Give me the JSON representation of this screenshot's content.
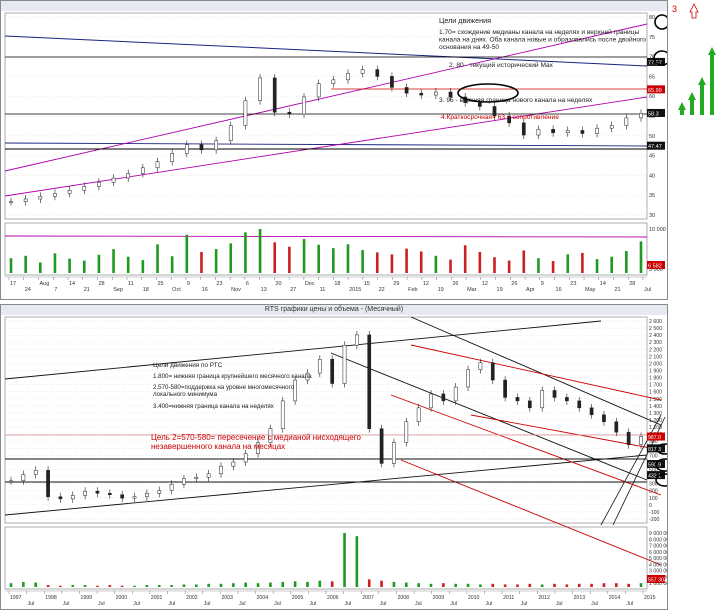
{
  "windows": [
    {
      "title": "",
      "chart_data": {
        "type": "candlestick",
        "title": "",
        "price_ticks": [
          "80",
          "75",
          "70",
          "65",
          "60",
          "55",
          "50",
          "45",
          "40",
          "35",
          "30"
        ],
        "price_markers": [
          {
            "label": "77.57",
            "value": 70.2,
            "color": "#111111"
          },
          {
            "label": "65.99",
            "value": 63.0,
            "color": "#cc0000"
          },
          {
            "label": "58.3",
            "value": 56.8,
            "color": "#111111"
          },
          {
            "label": "47.47",
            "value": 48.2,
            "color": "#111111"
          }
        ],
        "volume_ticks": [
          "10 000",
          "5 000"
        ],
        "volume_marker": "6 582",
        "date_ticks": [
          "17",
          "24",
          "Aug",
          "7",
          "14",
          "21",
          "28",
          "Sep",
          "11",
          "18",
          "25",
          "Oct",
          "9",
          "16",
          "23",
          "Nov",
          "6",
          "13",
          "20",
          "27",
          "Dec",
          "11",
          "18",
          "2015",
          "15",
          "22",
          "29",
          "Feb",
          "12",
          "19",
          "26",
          "Mar",
          "12",
          "19",
          "26",
          "Apr",
          "9",
          "16",
          "23",
          "May",
          "14",
          "21",
          "28",
          "Jul"
        ],
        "annotations": [
          {
            "text": "Цели движения",
            "color": "#222222"
          },
          {
            "text": "1.70= схождение медианы канала на неделях и верхней границы канала на днях. Оба канала новые и образовались после двойного основания на 49-50",
            "color": "#222222"
          },
          {
            "text": "2. 80 - текущий исторический Мах",
            "color": "#222222"
          },
          {
            "text": "3. 95 - верхняя граница нового канала на неделях",
            "color": "#222222"
          },
          {
            "text": "4.Краткосрочная= 63 = сопротивление",
            "color": "#cc0000"
          }
        ],
        "circle_labels": [
          "1",
          "2"
        ],
        "series": [
          {
            "name": "price",
            "values": [
              33.5,
              34.2,
              34.9,
              35.7,
              36.5,
              37.5,
              38.6,
              39.7,
              40.9,
              42.4,
              44.0,
              46.2,
              48.5,
              47.1,
              49.5,
              53.5,
              60.0,
              66.0,
              57.0,
              56.5,
              61.0,
              64.5,
              65.5,
              67.2,
              68.2,
              66.4,
              63.5,
              62.0,
              61.5,
              62.3,
              61.0,
              59.5,
              58.5,
              56.0,
              54.2,
              51.0,
              52.5,
              51.6,
              52.2,
              51.4,
              52.8,
              53.5,
              55.5,
              56.7
            ]
          },
          {
            "name": "volume",
            "values": [
              3.1,
              3.6,
              2.2,
              4.1,
              3.0,
              2.6,
              3.8,
              5.0,
              3.4,
              2.7,
              6.0,
              3.5,
              8.0,
              4.4,
              5.0,
              6.2,
              8.5,
              9.2,
              6.4,
              5.5,
              7.1,
              5.9,
              5.2,
              6.0,
              4.8,
              4.3,
              3.9,
              5.1,
              4.5,
              3.6,
              2.8,
              5.8,
              4.4,
              3.3,
              2.6,
              4.7,
              3.1,
              2.5,
              3.9,
              4.2,
              2.9,
              3.4,
              4.6,
              6.6
            ]
          }
        ]
      }
    },
    {
      "title": "RTS графики цены и объема - (Месячный)",
      "chart_data": {
        "type": "candlestick",
        "title": "RTS графики цены и объема - (Месячный)",
        "price_ticks": [
          "2 600",
          "2 500",
          "2 400",
          "2 300",
          "2 200",
          "2 100",
          "2 000",
          "1 900",
          "1 800",
          "1 700",
          "1 600",
          "1 500",
          "1 400",
          "1 300",
          "1 200",
          "1 100",
          "1 000",
          "900",
          "800",
          "700",
          "600",
          "500",
          "400",
          "300",
          "200",
          "100",
          "0",
          "-100",
          "-200"
        ],
        "price_markers": [
          {
            "label": "987.0",
            "value": 987,
            "color": "#cc0000"
          },
          {
            "label": "817.3",
            "value": 817,
            "color": "#111111"
          },
          {
            "label": "590.9",
            "value": 591,
            "color": "#111111"
          },
          {
            "label": "432.1",
            "value": 432,
            "color": "#111111"
          }
        ],
        "volume_ticks": [
          "9 000 000",
          "8 000 000",
          "7 000 000",
          "6 000 000",
          "5 000 000",
          "4 000 000",
          "3 000 000",
          "2 000 000",
          "1 000 000"
        ],
        "volume_marker": "557 303",
        "date_ticks": [
          "1997",
          "Jul",
          "1998",
          "Jul",
          "1999",
          "Jul",
          "2000",
          "Jul",
          "2001",
          "Jul",
          "2002",
          "Jul",
          "2003",
          "Jul",
          "2004",
          "Jul",
          "2005",
          "Jul",
          "2006",
          "Jul",
          "2007",
          "Jul",
          "2008",
          "Jul",
          "2009",
          "Jul",
          "2010",
          "Jul",
          "2011",
          "Jul",
          "2012",
          "Jul",
          "2013",
          "Jul",
          "2014",
          "Jul",
          "2015"
        ],
        "annotations": [
          {
            "text": "Цели движения по РТС",
            "color": "#222222"
          },
          {
            "text": "1.800= нижняя граница крупнейшего месячного канала",
            "color": "#222222"
          },
          {
            "text": "2.570-580=поддержка на уровне многомесячного локального минимума",
            "color": "#222222"
          },
          {
            "text": "3.400=нижняя граница канала на неделях",
            "color": "#222222"
          },
          {
            "text": "Цель 2=570-580= пересечение с медианой нисходящего незавершенного канала на месяцах",
            "color": "#cc0000"
          }
        ],
        "circle_labels": [
          "1",
          "2",
          "3"
        ],
        "series": [
          {
            "name": "price",
            "values": [
              350,
              440,
              500,
              120,
              90,
              140,
              200,
              170,
              150,
              100,
              120,
              170,
              210,
              300,
              380,
              400,
              450,
              560,
              620,
              740,
              900,
              1100,
              1500,
              1800,
              1900,
              2100,
              1750,
              2300,
              2450,
              1100,
              600,
              900,
              1200,
              1400,
              1600,
              1500,
              1700,
              1950,
              2050,
              1800,
              1550,
              1500,
              1400,
              1650,
              1550,
              1500,
              1400,
              1300,
              1200,
              1050,
              870,
              990
            ]
          },
          {
            "name": "volume",
            "values": [
              0.6,
              0.8,
              0.7,
              0.3,
              0.2,
              0.3,
              0.3,
              0.2,
              0.3,
              0.2,
              0.2,
              0.3,
              0.3,
              0.3,
              0.4,
              0.4,
              0.5,
              0.5,
              0.6,
              0.7,
              0.6,
              0.7,
              0.8,
              0.9,
              0.8,
              1.0,
              0.9,
              8.5,
              8.0,
              1.2,
              1.0,
              0.8,
              0.7,
              0.6,
              0.5,
              0.6,
              0.5,
              0.5,
              0.4,
              0.5,
              0.4,
              0.4,
              0.5,
              0.4,
              0.5,
              0.4,
              0.5,
              0.5,
              0.6,
              0.6,
              0.5,
              0.6
            ]
          }
        ]
      }
    }
  ],
  "right_arrows": {
    "label": "3",
    "color": "#22aa22"
  }
}
